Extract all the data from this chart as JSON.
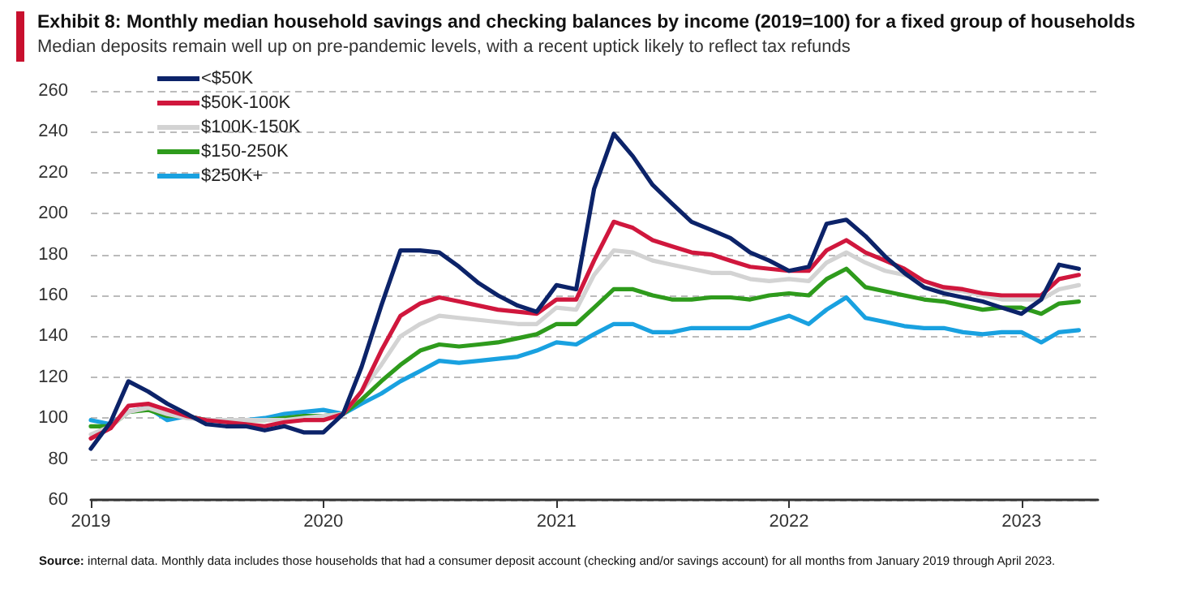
{
  "chart_data": {
    "type": "line",
    "title": "Exhibit 8: Monthly median household savings and checking balances by income (2019=100) for a fixed group of households",
    "subtitle": "Median deposits remain well up on pre-pandemic levels, with a recent uptick likely to reflect tax refunds",
    "annotations": [
      "Source: internal data. Monthly data includes those households that had a consumer deposit account (checking and/or savings account) for all months from January 2019 through April 2023."
    ],
    "x": [
      "2019-01",
      "2019-02",
      "2019-03",
      "2019-04",
      "2019-05",
      "2019-06",
      "2019-07",
      "2019-08",
      "2019-09",
      "2019-10",
      "2019-11",
      "2019-12",
      "2020-01",
      "2020-02",
      "2020-03",
      "2020-04",
      "2020-05",
      "2020-06",
      "2020-07",
      "2020-08",
      "2020-09",
      "2020-10",
      "2020-11",
      "2020-12",
      "2021-01",
      "2021-02",
      "2021-03",
      "2021-04",
      "2021-05",
      "2021-06",
      "2021-07",
      "2021-08",
      "2021-09",
      "2021-10",
      "2021-11",
      "2021-12",
      "2022-01",
      "2022-02",
      "2022-03",
      "2022-04",
      "2022-05",
      "2022-06",
      "2022-07",
      "2022-08",
      "2022-09",
      "2022-10",
      "2022-11",
      "2022-12",
      "2023-01",
      "2023-02",
      "2023-03",
      "2023-04"
    ],
    "series": [
      {
        "name": "<$50K",
        "color": "#0c2369",
        "values": [
          85,
          98,
          118,
          113,
          107,
          102,
          97,
          96,
          96,
          94,
          96,
          93,
          93,
          102,
          125,
          155,
          182,
          182,
          181,
          174,
          166,
          160,
          155,
          152,
          165,
          163,
          212,
          239,
          228,
          214,
          205,
          196,
          192,
          188,
          181,
          177,
          172,
          174,
          195,
          197,
          189,
          179,
          171,
          164,
          161,
          159,
          157,
          154,
          151,
          158,
          175,
          173
        ]
      },
      {
        "name": "$50K-100K",
        "color": "#d0173d",
        "values": [
          90,
          95,
          106,
          107,
          104,
          101,
          99,
          98,
          97,
          96,
          98,
          99,
          99,
          102,
          113,
          133,
          150,
          156,
          159,
          157,
          155,
          153,
          152,
          151,
          158,
          158,
          177,
          196,
          193,
          187,
          184,
          181,
          180,
          177,
          174,
          173,
          172,
          172,
          182,
          187,
          181,
          177,
          173,
          167,
          164,
          163,
          161,
          160,
          160,
          160,
          168,
          170
        ]
      },
      {
        "name": "$100K-150K",
        "color": "#d3d3d3",
        "values": [
          92,
          96,
          103,
          105,
          102,
          100,
          99,
          99,
          99,
          99,
          99,
          100,
          101,
          102,
          113,
          126,
          140,
          146,
          150,
          149,
          148,
          147,
          146,
          146,
          154,
          153,
          170,
          182,
          181,
          177,
          175,
          173,
          171,
          171,
          168,
          167,
          168,
          167,
          176,
          181,
          176,
          172,
          170,
          167,
          163,
          162,
          160,
          158,
          158,
          158,
          163,
          165
        ]
      },
      {
        "name": "$150-250K",
        "color": "#2e9b1c",
        "values": [
          96,
          96,
          103,
          104,
          101,
          101,
          99,
          99,
          99,
          99,
          100,
          101,
          101,
          102,
          109,
          118,
          126,
          133,
          136,
          135,
          136,
          137,
          139,
          141,
          146,
          146,
          154,
          163,
          163,
          160,
          158,
          158,
          159,
          159,
          158,
          160,
          161,
          160,
          168,
          173,
          164,
          162,
          160,
          158,
          157,
          155,
          153,
          154,
          154,
          151,
          156,
          157
        ]
      },
      {
        "name": "$250K+",
        "color": "#19a1e0",
        "values": [
          99,
          97,
          103,
          105,
          99,
          101,
          99,
          99,
          99,
          100,
          102,
          103,
          104,
          102,
          107,
          112,
          118,
          123,
          128,
          127,
          128,
          129,
          130,
          133,
          137,
          136,
          141,
          146,
          146,
          142,
          142,
          144,
          144,
          144,
          144,
          147,
          150,
          146,
          153,
          159,
          149,
          147,
          145,
          144,
          144,
          142,
          141,
          142,
          142,
          137,
          142,
          143
        ]
      }
    ],
    "xlim": [
      "2019-01",
      "2023-05"
    ],
    "xticks": [
      {
        "value": "2019-01",
        "label": "2019"
      },
      {
        "value": "2020-01",
        "label": "2020"
      },
      {
        "value": "2021-01",
        "label": "2021"
      },
      {
        "value": "2022-01",
        "label": "2022"
      },
      {
        "value": "2023-01",
        "label": "2023"
      }
    ],
    "ylim": [
      60,
      260
    ],
    "yticks": [
      60,
      80,
      100,
      120,
      140,
      160,
      180,
      200,
      220,
      240,
      260
    ],
    "grid": "y",
    "legend": "top left",
    "marker": "none",
    "line_style": "solid"
  }
}
